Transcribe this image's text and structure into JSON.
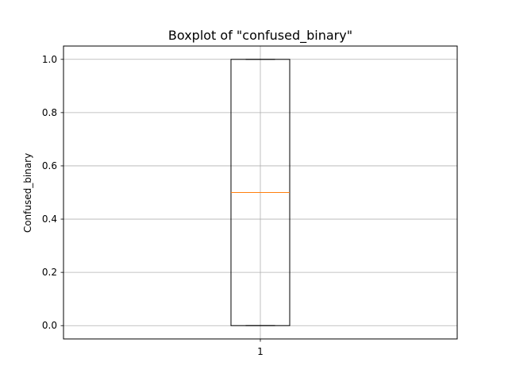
{
  "chart_data": {
    "type": "boxplot",
    "title": "Boxplot of \"confused_binary\"",
    "xlabel": "",
    "ylabel": "Confused_binary",
    "categories": [
      "1"
    ],
    "series": [
      {
        "name": "confused_binary",
        "q1": 0.0,
        "median": 0.5,
        "q3": 1.0,
        "whisker_low": 0.0,
        "whisker_high": 1.0,
        "outliers": []
      }
    ],
    "ylim": [
      -0.05,
      1.05
    ],
    "yticks": [
      0.0,
      0.2,
      0.4,
      0.6,
      0.8,
      1.0
    ],
    "ytick_labels": [
      "0.0",
      "0.2",
      "0.4",
      "0.6",
      "0.8",
      "1.0"
    ],
    "grid": true,
    "colors": {
      "box": "#000000",
      "median": "#ff7f0e",
      "grid": "#b0b0b0",
      "frame": "#000000"
    }
  }
}
